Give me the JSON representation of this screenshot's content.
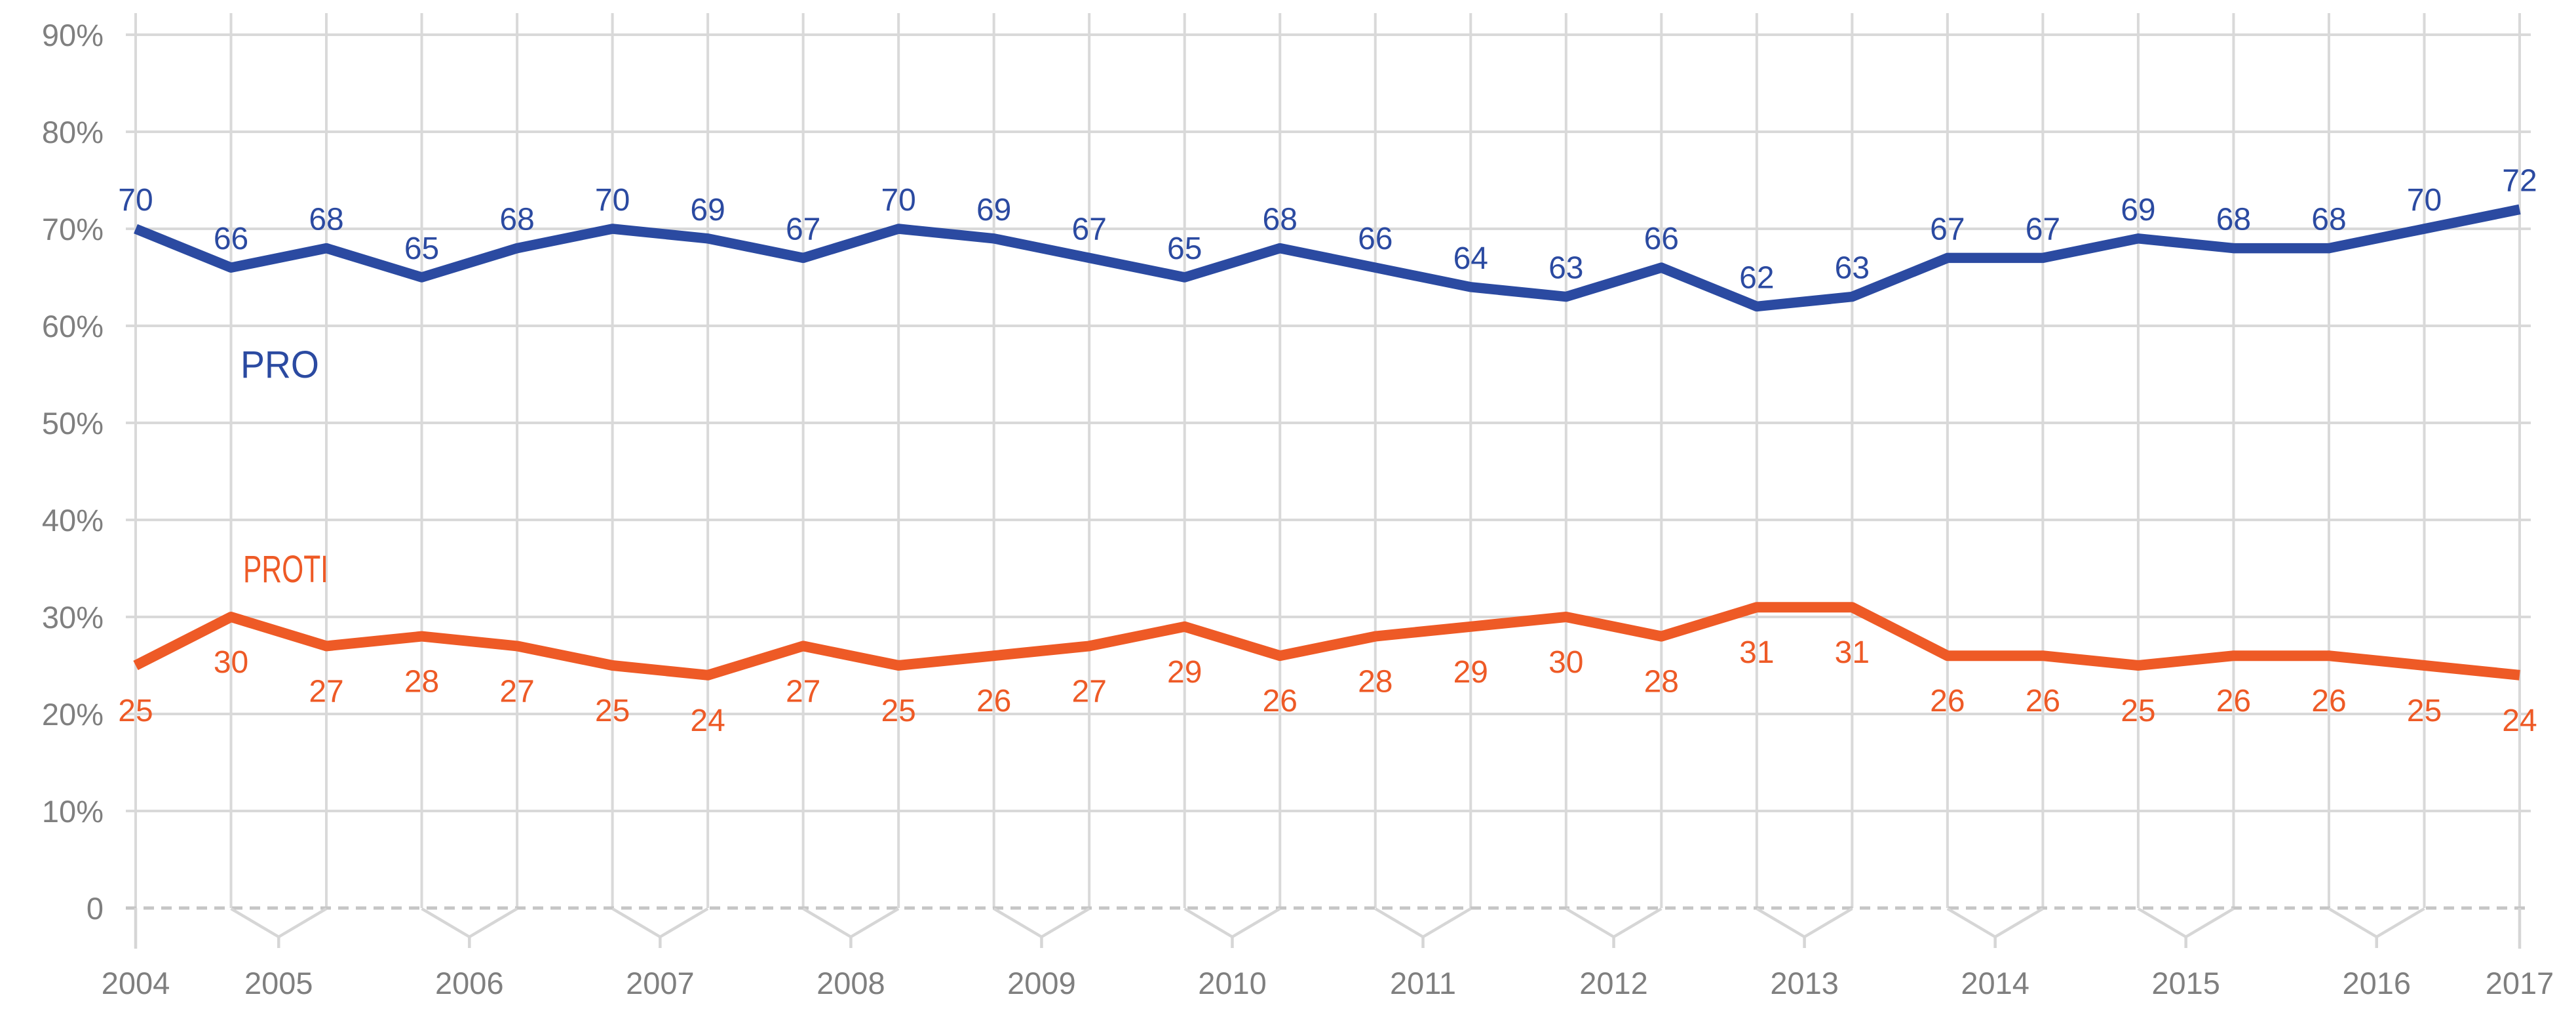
{
  "colors": {
    "background": "#ffffff",
    "grid": "#d9d9d9",
    "zero_line": "#c6c6c6",
    "axis_bracket": "#d6d6d6",
    "axis_text": "#7f7f7f",
    "pro_blue": "#2b4aa1",
    "proti_orange": "#ee5a26"
  },
  "chart_data": {
    "type": "line",
    "title": "",
    "xlabel": "",
    "ylabel": "",
    "ylim": [
      0,
      90
    ],
    "grid": true,
    "zero_line_style": "dashed",
    "legend_position": "inline-labels",
    "x_tick_labels": [
      "2004",
      "2005",
      "2006",
      "2007",
      "2008",
      "2009",
      "2010",
      "2011",
      "2012",
      "2013",
      "2014",
      "2015",
      "2016",
      "2017"
    ],
    "y_ticks": [
      {
        "value": 90,
        "label": "90%"
      },
      {
        "value": 80,
        "label": "80%"
      },
      {
        "value": 70,
        "label": "70%"
      },
      {
        "value": 60,
        "label": "60%"
      },
      {
        "value": 50,
        "label": "50%"
      },
      {
        "value": 40,
        "label": "40%"
      },
      {
        "value": 30,
        "label": "30%"
      },
      {
        "value": 20,
        "label": "20%"
      },
      {
        "value": 10,
        "label": "10%"
      },
      {
        "value": 0,
        "label": "0"
      }
    ],
    "points_per_series": 26,
    "series": [
      {
        "name": "PRO",
        "color": "#2b4aa1",
        "values": [
          70,
          66,
          68,
          65,
          68,
          70,
          69,
          67,
          70,
          69,
          67,
          65,
          68,
          66,
          64,
          63,
          66,
          62,
          63,
          67,
          67,
          69,
          68,
          68,
          70,
          72
        ]
      },
      {
        "name": "PROTI",
        "color": "#ee5a26",
        "values": [
          25,
          30,
          27,
          28,
          27,
          25,
          24,
          27,
          25,
          26,
          27,
          29,
          26,
          28,
          29,
          30,
          28,
          31,
          31,
          26,
          26,
          25,
          26,
          26,
          25,
          24
        ]
      }
    ]
  }
}
